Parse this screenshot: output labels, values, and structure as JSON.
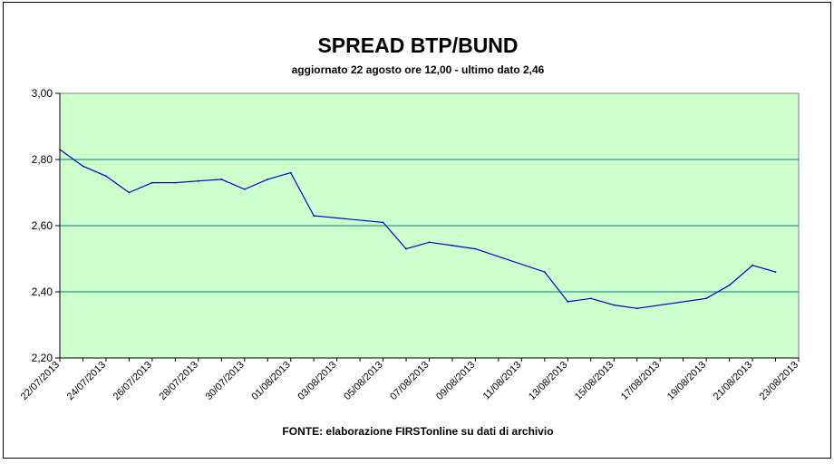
{
  "chart_data": {
    "type": "line",
    "title": "SPREAD BTP/BUND",
    "subtitle": "aggiornato 22 agosto ore 12,00 - ultimo dato 2,46",
    "source": "FONTE:  elaborazione FIRSTonline su dati di archivio",
    "xlabel": "",
    "ylabel": "",
    "ylim": [
      2.2,
      3.0
    ],
    "y_ticks": [
      "2,20",
      "2,40",
      "2,60",
      "2,80",
      "3,00"
    ],
    "y_tick_values": [
      2.2,
      2.4,
      2.6,
      2.8,
      3.0
    ],
    "x_tick_labels": [
      "22/07/2013",
      "24/07/2013",
      "26/07/2013",
      "28/07/2013",
      "30/07/2013",
      "01/08/2013",
      "03/08/2013",
      "05/08/2013",
      "07/08/2013",
      "09/08/2013",
      "11/08/2013",
      "13/08/2013",
      "15/08/2013",
      "17/08/2013",
      "19/08/2013",
      "21/08/2013",
      "23/08/2013"
    ],
    "grid": true,
    "legend": false,
    "colors": {
      "plot_background": "#ccffcc",
      "line": "#0000cc",
      "gridline": "#008080"
    },
    "series": [
      {
        "x": [
          "2013-07-22",
          "2013-07-23",
          "2013-07-24",
          "2013-07-25",
          "2013-07-26",
          "2013-07-27",
          "2013-07-28",
          "2013-07-29",
          "2013-07-30",
          "2013-07-31",
          "2013-08-01",
          "2013-08-02",
          "2013-08-05",
          "2013-08-06",
          "2013-08-07",
          "2013-08-08",
          "2013-08-09",
          "2013-08-12",
          "2013-08-13",
          "2013-08-14",
          "2013-08-15",
          "2013-08-16",
          "2013-08-19",
          "2013-08-20",
          "2013-08-21",
          "2013-08-22"
        ],
        "values": [
          2.83,
          2.78,
          2.75,
          2.7,
          2.73,
          2.73,
          2.735,
          2.74,
          2.71,
          2.74,
          2.76,
          2.63,
          2.61,
          2.53,
          2.55,
          2.54,
          2.53,
          2.46,
          2.37,
          2.38,
          2.36,
          2.35,
          2.38,
          2.42,
          2.48,
          2.46
        ]
      }
    ]
  }
}
